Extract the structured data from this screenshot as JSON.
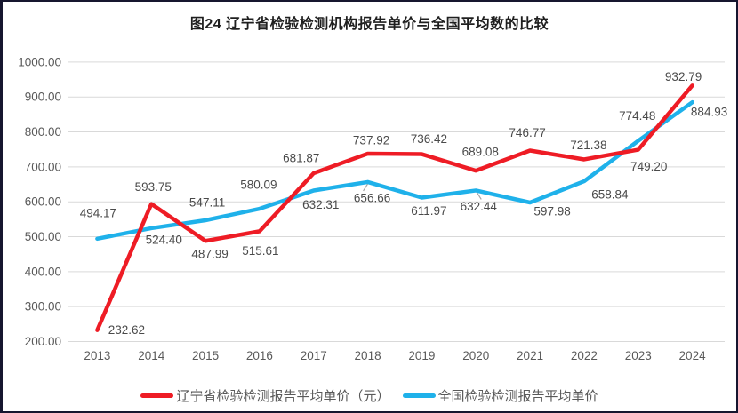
{
  "chart_data": {
    "type": "line",
    "title": "图24 辽宁省检验检测机构报告单价与全国平均数的比较",
    "x": [
      "2013",
      "2014",
      "2015",
      "2016",
      "2017",
      "2018",
      "2019",
      "2020",
      "2021",
      "2022",
      "2023",
      "2024"
    ],
    "yticks": [
      "1000.00",
      "900.00",
      "800.00",
      "700.00",
      "600.00",
      "500.00",
      "400.00",
      "300.00",
      "200.00"
    ],
    "ylim": [
      200,
      1000
    ],
    "ytick_step": 100,
    "grid": true,
    "legend_position": "bottom",
    "series": [
      {
        "key": "liaoning",
        "name": "辽宁省检验检测报告平均单价（元）",
        "color": "#EE1C25",
        "values": [
          232.62,
          593.75,
          487.99,
          515.61,
          681.87,
          737.92,
          736.42,
          689.08,
          746.77,
          721.38,
          749.2,
          932.79
        ],
        "label_dx": [
          33,
          2,
          5,
          1,
          -14,
          4,
          8,
          5,
          -3,
          5,
          12,
          -10
        ],
        "label_dy": [
          0,
          -19,
          15,
          22,
          -17,
          -15,
          -17,
          -21,
          -20,
          -16,
          19,
          -10
        ]
      },
      {
        "key": "national",
        "name": "全国检验检测报告平均单价",
        "color": "#1FB1EA",
        "values": [
          494.17,
          524.4,
          547.11,
          580.09,
          632.31,
          656.66,
          611.97,
          632.44,
          597.98,
          658.84,
          774.48,
          884.93
        ],
        "label_dx": [
          1,
          14,
          2,
          -1,
          8,
          5,
          8,
          3,
          25,
          29,
          -1,
          19
        ],
        "label_dy": [
          -29,
          13,
          -20,
          -27,
          16,
          18,
          15,
          18,
          10,
          15,
          -28,
          11
        ]
      }
    ],
    "leader_lines": [
      {
        "series": 1,
        "index": 5,
        "dx1": 0,
        "dy1": 2,
        "dx2": -5,
        "dy2": 10
      },
      {
        "series": 1,
        "index": 7,
        "dx1": 1,
        "dy1": 2,
        "dx2": 6,
        "dy2": 10
      }
    ],
    "colors": {
      "gridline": "#D9D9D9",
      "axis_label": "#595959",
      "data_label": "#4a4a4a",
      "leader": "#A6A6A6",
      "title": "#1f1f1f",
      "border": "#16162f"
    }
  }
}
